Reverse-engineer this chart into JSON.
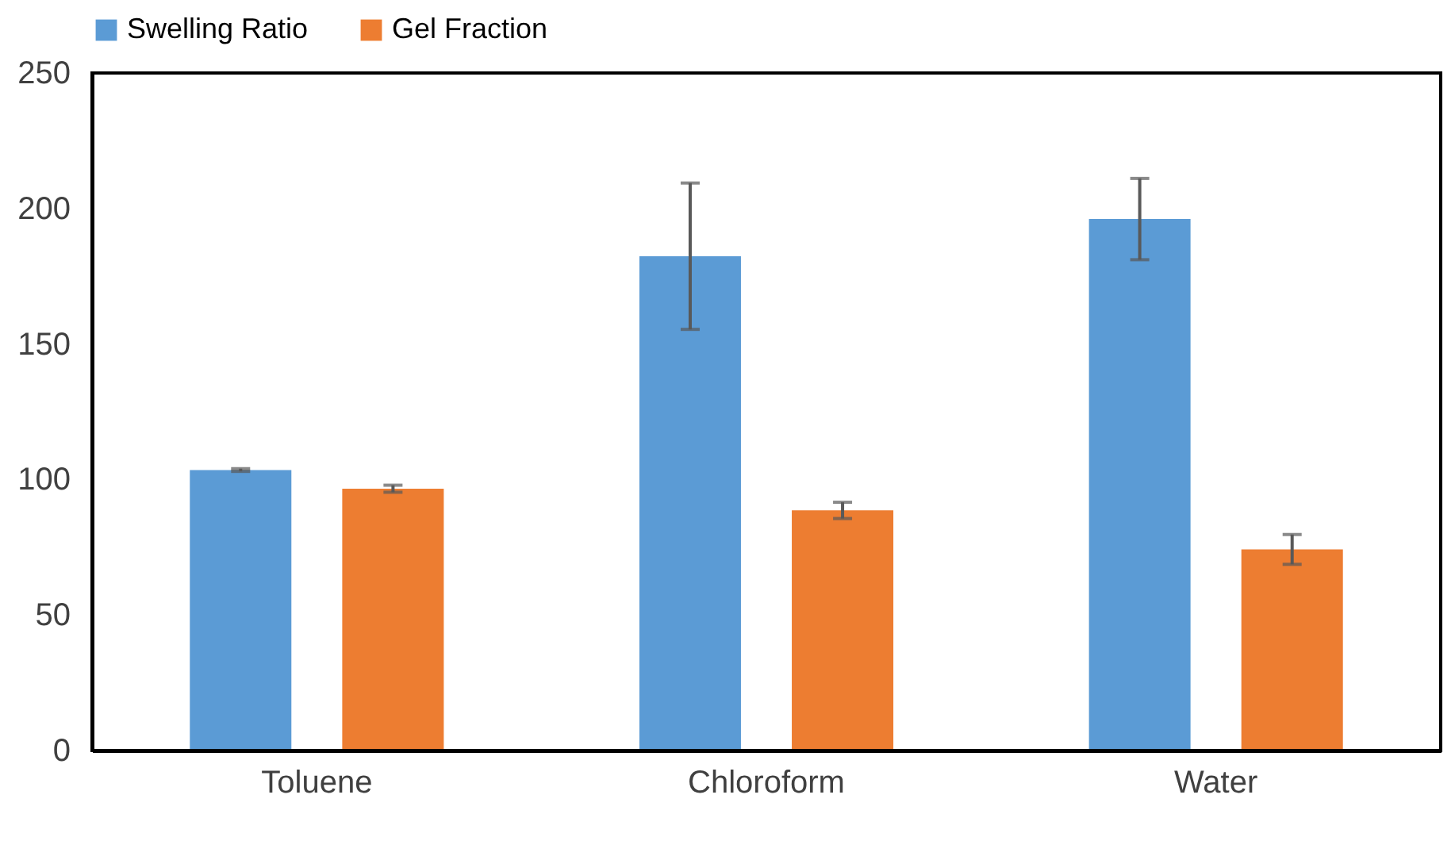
{
  "chart_data": {
    "type": "bar",
    "categories": [
      "Toluene",
      "Chloroform",
      "Water"
    ],
    "series": [
      {
        "name": "Swelling Ratio",
        "color": "#5b9bd5",
        "values": [
          103.5,
          182.4,
          196.1
        ],
        "errors": [
          0.5,
          27,
          15
        ]
      },
      {
        "name": "Gel Fraction",
        "color": "#ed7d31",
        "values": [
          96.6,
          88.6,
          74.2
        ],
        "errors": [
          1.3,
          3,
          5.5
        ]
      }
    ],
    "ylim": [
      0,
      250
    ],
    "yticks": [
      0,
      50,
      100,
      150,
      200,
      250
    ],
    "grid": false,
    "legend": "top"
  }
}
